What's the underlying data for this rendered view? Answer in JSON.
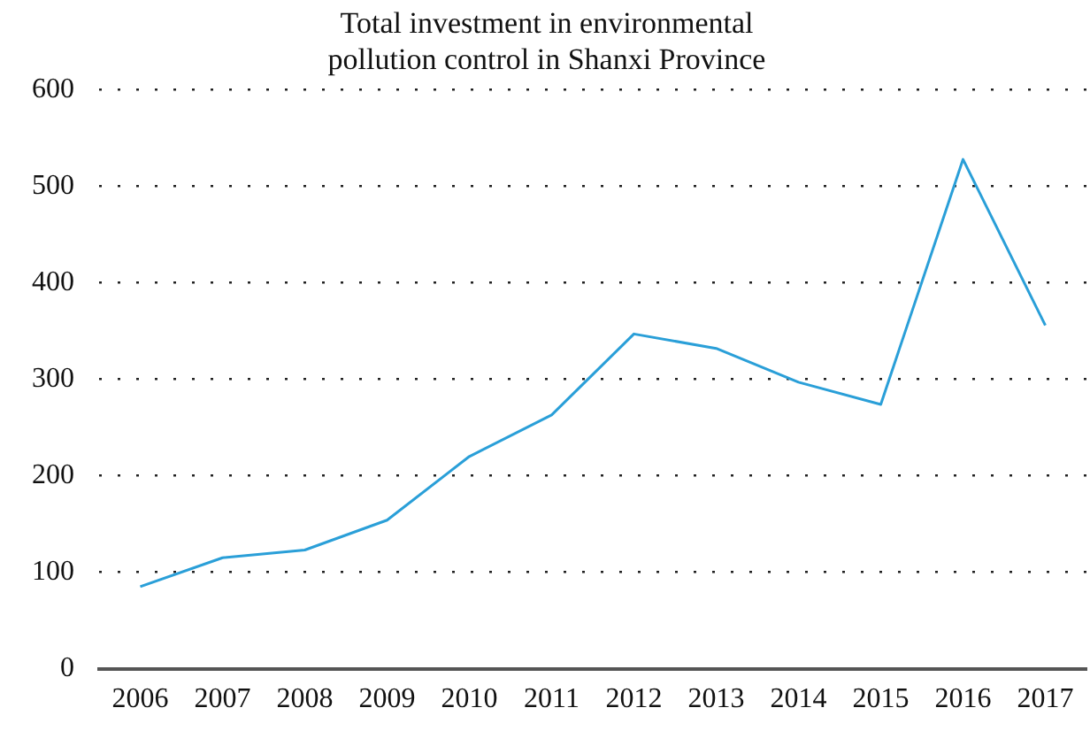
{
  "chart_data": {
    "type": "line",
    "title": "Total investment in environmental pollution control in Shanxi Province",
    "categories": [
      "2006",
      "2007",
      "2008",
      "2009",
      "2010",
      "2011",
      "2012",
      "2013",
      "2014",
      "2015",
      "2016",
      "2017"
    ],
    "series": [
      {
        "color": "#2a9fd8",
        "values": [
          85,
          115,
          123,
          154,
          220,
          263,
          347,
          332,
          297,
          274,
          528,
          356
        ]
      }
    ],
    "ylim": [
      0,
      600
    ],
    "yticks": [
      0,
      100,
      200,
      300,
      400,
      500,
      600
    ],
    "grid": "y",
    "legend": false,
    "marker": "none",
    "line_style": "solid"
  }
}
